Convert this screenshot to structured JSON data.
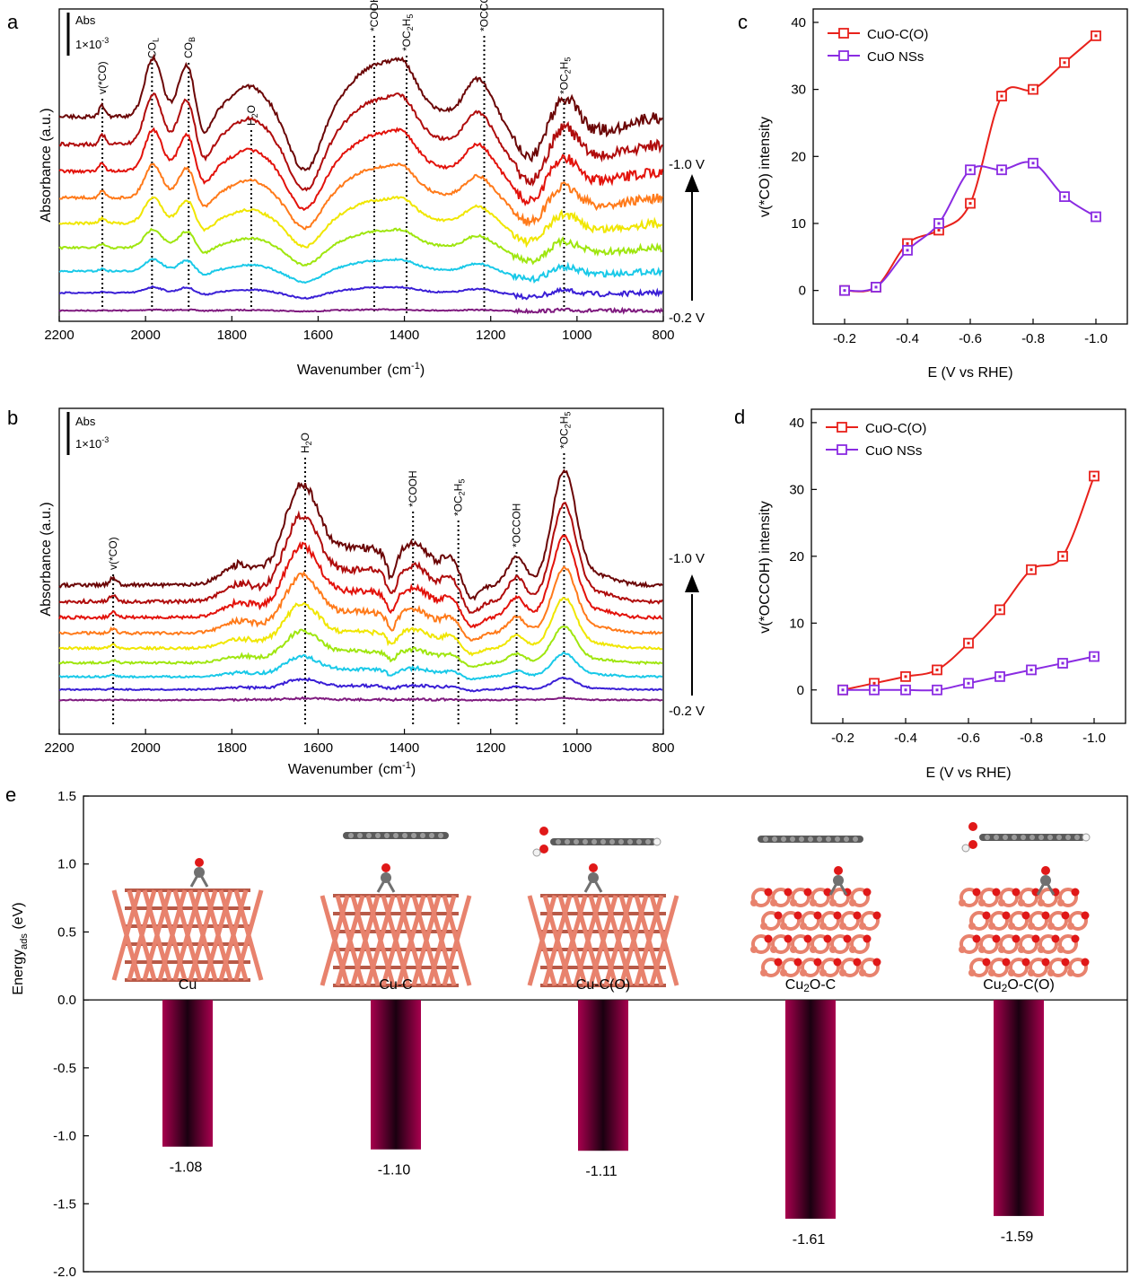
{
  "chart_data": [
    {
      "panel": "a",
      "type": "line",
      "xlabel": "Wavenumber",
      "xunit": "(cm",
      "xunit_exp": "-1",
      "xunit_close": ")",
      "ylabel": "Absorbance (a.u.)",
      "xlim": [
        2200,
        800
      ],
      "xticks": [
        2200,
        2000,
        1800,
        1600,
        1400,
        1200,
        1000,
        800
      ],
      "scale_bar": {
        "title": "Abs",
        "value": "1×10",
        "exp": "-3"
      },
      "potential_top": "-1.0 V",
      "potential_bottom": "-0.2 V",
      "series_colors": [
        "#7f1a7f",
        "#3a1fd6",
        "#19c9e8",
        "#9fe60f",
        "#f0e600",
        "#ff7a1a",
        "#e3120b",
        "#b00c0c",
        "#6b0606"
      ],
      "bands": [
        {
          "x": 2100,
          "label": "v(*CO)"
        },
        {
          "x": 1985,
          "base": "CO",
          "sub": "L"
        },
        {
          "x": 1900,
          "base": "CO",
          "sub": "B"
        },
        {
          "x": 1755,
          "base": "H",
          "sub": "2",
          "tail": "O"
        },
        {
          "x": 1470,
          "label": "*COOH"
        },
        {
          "x": 1395,
          "base": "*OC",
          "sub": "2",
          "tail": "H",
          "sub2": "5"
        },
        {
          "x": 1215,
          "label": "*OCCOH"
        },
        {
          "x": 1030,
          "base": "*OC",
          "sub": "2",
          "tail": "H",
          "sub2": "5"
        }
      ]
    },
    {
      "panel": "b",
      "type": "line",
      "xlabel": "Wavenumber",
      "xunit": "(cm",
      "xunit_exp": "-1",
      "xunit_close": ")",
      "ylabel": "Absorbance (a.u.)",
      "xlim": [
        2200,
        800
      ],
      "xticks": [
        2200,
        2000,
        1800,
        1600,
        1400,
        1200,
        1000,
        800
      ],
      "scale_bar": {
        "title": "Abs",
        "value": "1×10",
        "exp": "-3"
      },
      "potential_top": "-1.0 V",
      "potential_bottom": "-0.2 V",
      "series_colors": [
        "#7f1a7f",
        "#3a1fd6",
        "#19c9e8",
        "#9fe60f",
        "#f0e600",
        "#ff7a1a",
        "#e3120b",
        "#b00c0c",
        "#6b0606"
      ],
      "bands": [
        {
          "x": 2075,
          "label": "v(*CO)"
        },
        {
          "x": 1630,
          "base": "H",
          "sub": "2",
          "tail": "O"
        },
        {
          "x": 1380,
          "label": "*COOH"
        },
        {
          "x": 1275,
          "base": "*OC",
          "sub": "2",
          "tail": "H",
          "sub2": "5"
        },
        {
          "x": 1140,
          "label": "*OCCOH"
        },
        {
          "x": 1030,
          "base": "*OC",
          "sub": "2",
          "tail": "H",
          "sub2": "5"
        }
      ]
    },
    {
      "panel": "c",
      "type": "line",
      "xlabel": "E (V vs RHE)",
      "ylabel": "v(*CO) intensity",
      "xlim": [
        -0.1,
        -1.1
      ],
      "ylim": [
        -5,
        42
      ],
      "xticks": [
        "-0.2",
        "-0.4",
        "-0.6",
        "-0.8",
        "-1.0"
      ],
      "yticks": [
        "0",
        "10",
        "20",
        "30",
        "40"
      ],
      "x": [
        -0.2,
        -0.3,
        -0.4,
        -0.5,
        -0.6,
        -0.7,
        -0.8,
        -0.9,
        -1.0
      ],
      "series": [
        {
          "name": "CuO-C(O)",
          "color": "#e8211b",
          "values": [
            0,
            0.5,
            7,
            9,
            13,
            29,
            30,
            34,
            38
          ]
        },
        {
          "name": "CuO NSs",
          "color": "#8a2be2",
          "values": [
            0,
            0.5,
            6,
            10,
            18,
            18,
            19,
            14,
            11
          ]
        }
      ]
    },
    {
      "panel": "d",
      "type": "line",
      "xlabel": "E (V vs RHE)",
      "ylabel": "v(*OCCOH) intensity",
      "xlim": [
        -0.1,
        -1.1
      ],
      "ylim": [
        -5,
        42
      ],
      "xticks": [
        "-0.2",
        "-0.4",
        "-0.6",
        "-0.8",
        "-1.0"
      ],
      "yticks": [
        "0",
        "10",
        "20",
        "30",
        "40"
      ],
      "x": [
        -0.2,
        -0.3,
        -0.4,
        -0.5,
        -0.6,
        -0.7,
        -0.8,
        -0.9,
        -1.0
      ],
      "series": [
        {
          "name": "CuO-C(O)",
          "color": "#e8211b",
          "values": [
            0,
            1,
            2,
            3,
            7,
            12,
            18,
            20,
            32
          ]
        },
        {
          "name": "CuO NSs",
          "color": "#8a2be2",
          "values": [
            0,
            0,
            0,
            0,
            1,
            2,
            3,
            4,
            5
          ]
        }
      ]
    },
    {
      "panel": "e",
      "type": "bar",
      "ylabel": "Energy",
      "ylabel_sub": "ads",
      "ylabel_tail": " (eV)",
      "ylim": [
        -2.0,
        1.5
      ],
      "yticks": [
        "1.5",
        "1.0",
        "0.5",
        "0.0",
        "-0.5",
        "-1.0",
        "-1.5",
        "-2.0"
      ],
      "categories": [
        "Cu",
        "Cu-C",
        "Cu-C(O)",
        "Cu2O-C",
        "Cu2O-C(O)"
      ],
      "category_labels": [
        {
          "base": "Cu"
        },
        {
          "base": "Cu-C"
        },
        {
          "base": "Cu-C(O)"
        },
        {
          "base": "Cu",
          "sub": "2",
          "tail": "O-C"
        },
        {
          "base": "Cu",
          "sub": "2",
          "tail": "O-C(O)"
        }
      ],
      "values": [
        -1.08,
        -1.1,
        -1.11,
        -1.61,
        -1.59
      ],
      "value_labels": [
        "-1.08",
        "-1.10",
        "-1.11",
        "-1.61",
        "-1.59"
      ],
      "bar_colors": [
        "#a8004e",
        "#1a0010"
      ]
    }
  ]
}
